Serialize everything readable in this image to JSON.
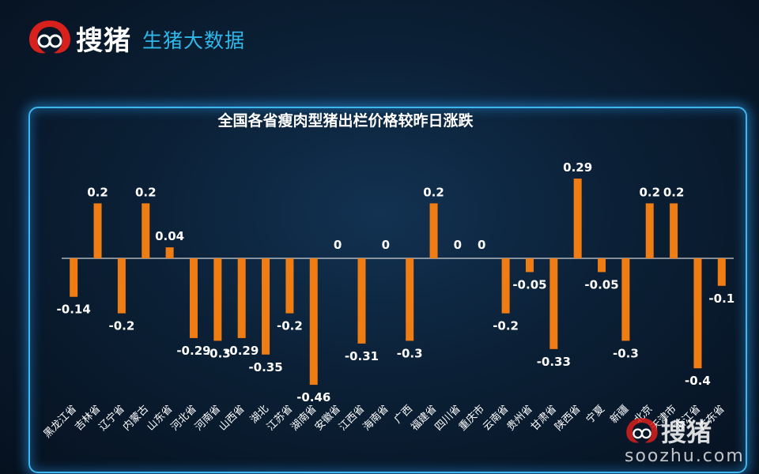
{
  "header": {
    "brand": "搜猪",
    "subtitle": "生猪大数据"
  },
  "watermark": {
    "brand": "搜猪",
    "url": "soozhu.com"
  },
  "colors": {
    "bar": "#f07c14",
    "axis": "#ffffff",
    "label": "#ffffff",
    "accent": "#2fb7ea",
    "logo_red": "#d8201c"
  },
  "chart_data": {
    "type": "bar",
    "title": "全国各省瘦肉型猪出栏价格较昨日涨跌",
    "xlabel": "",
    "ylabel": "",
    "ylim": [
      -0.5,
      0.35
    ],
    "grid": false,
    "categories": [
      "黑龙江省",
      "吉林省",
      "辽宁省",
      "内蒙古",
      "山东省",
      "河北省",
      "河南省",
      "山西省",
      "湖北",
      "江苏省",
      "湖南省",
      "安徽省",
      "江西省",
      "海南省",
      "广西",
      "福建省",
      "四川省",
      "重庆市",
      "云南省",
      "贵州省",
      "甘肃省",
      "陕西省",
      "宁夏",
      "新疆",
      "北京",
      "天津市",
      "浙江省",
      "广东省"
    ],
    "values": [
      -0.14,
      0.2,
      -0.2,
      0.2,
      0.04,
      -0.29,
      -0.3,
      -0.29,
      -0.35,
      -0.2,
      -0.46,
      0,
      -0.31,
      0,
      -0.3,
      0.2,
      0,
      0,
      -0.2,
      -0.05,
      -0.33,
      0.29,
      -0.05,
      -0.3,
      0.2,
      0.2,
      -0.4,
      -0.1
    ],
    "value_labels": [
      "-0.14",
      "0.2",
      "-0.2",
      "0.2",
      "0.04",
      "-0.29",
      "-0.3",
      "-0.29",
      "-0.35",
      "-0.2",
      "-0.46",
      "0",
      "-0.31",
      "0",
      "-0.3",
      "0.2",
      "0",
      "0",
      "-0.2",
      "-0.05",
      "-0.33",
      "0.29",
      "-0.05",
      "-0.3",
      "0.2",
      "0.2",
      "-0.4",
      "-0.1"
    ]
  }
}
